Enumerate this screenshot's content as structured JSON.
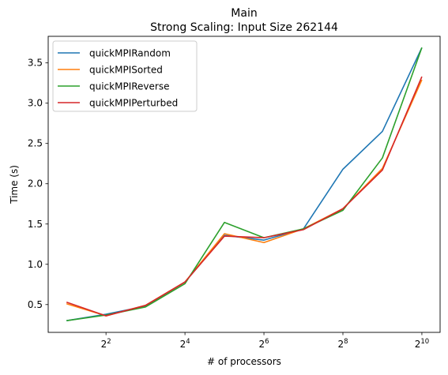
{
  "chart_data": {
    "type": "line",
    "title": "Main",
    "subtitle": "Strong Scaling: Input Size 262144",
    "xlabel": "# of processors",
    "ylabel": "Time (s)",
    "x_scale": "log2",
    "x": [
      2,
      4,
      8,
      16,
      32,
      64,
      128,
      256,
      512,
      1024
    ],
    "xlim": [
      1.45,
      1410
    ],
    "ylim": [
      0.155,
      3.83
    ],
    "x_ticks": [
      {
        "value": 4,
        "base": "2",
        "exp": "2"
      },
      {
        "value": 16,
        "base": "2",
        "exp": "4"
      },
      {
        "value": 64,
        "base": "2",
        "exp": "6"
      },
      {
        "value": 256,
        "base": "2",
        "exp": "8"
      },
      {
        "value": 1024,
        "base": "2",
        "exp": "10"
      }
    ],
    "y_ticks": [
      {
        "value": 0.5,
        "label": "0.5"
      },
      {
        "value": 1.0,
        "label": "1.0"
      },
      {
        "value": 1.5,
        "label": "1.5"
      },
      {
        "value": 2.0,
        "label": "2.0"
      },
      {
        "value": 2.5,
        "label": "2.5"
      },
      {
        "value": 3.0,
        "label": "3.0"
      },
      {
        "value": 3.5,
        "label": "3.5"
      }
    ],
    "grid": false,
    "legend_position": "top-left",
    "series": [
      {
        "name": "quickMPIRandom",
        "color": "#1f77b4",
        "values": [
          0.3,
          0.38,
          0.48,
          0.78,
          1.36,
          1.3,
          1.44,
          2.18,
          2.65,
          3.69
        ]
      },
      {
        "name": "quickMPISorted",
        "color": "#ff7f0e",
        "values": [
          0.51,
          0.36,
          0.49,
          0.78,
          1.38,
          1.27,
          1.44,
          1.69,
          2.19,
          3.29
        ]
      },
      {
        "name": "quickMPIReverse",
        "color": "#2ca02c",
        "values": [
          0.3,
          0.37,
          0.47,
          0.76,
          1.52,
          1.33,
          1.44,
          1.67,
          2.32,
          3.69
        ]
      },
      {
        "name": "quickMPIPerturbed",
        "color": "#d62728",
        "values": [
          0.53,
          0.36,
          0.49,
          0.78,
          1.35,
          1.33,
          1.43,
          1.69,
          2.17,
          3.33
        ]
      }
    ]
  }
}
